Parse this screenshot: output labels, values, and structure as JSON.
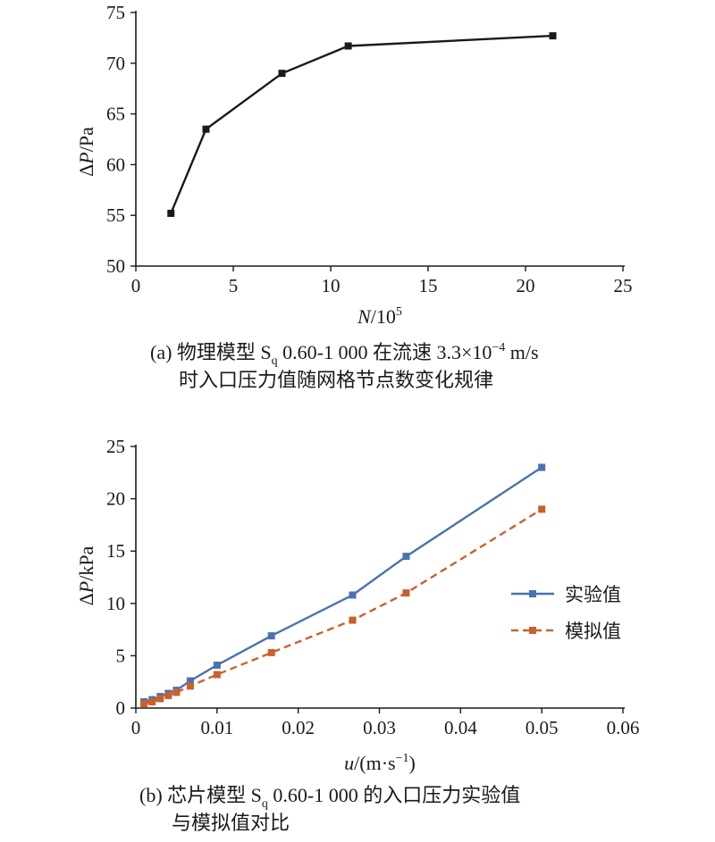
{
  "chart_data": [
    {
      "type": "line",
      "xlabel_italic": "N",
      "xlabel_rest": "/10",
      "xlabel_sup": "5",
      "ylabel_delta": "Δ",
      "ylabel_italic": "P",
      "ylabel_rest": "/Pa",
      "xlim": [
        0,
        25
      ],
      "ylim": [
        50,
        75
      ],
      "x_ticks": [
        "0",
        "5",
        "10",
        "15",
        "20",
        "25"
      ],
      "y_ticks": [
        "50",
        "55",
        "60",
        "65",
        "70",
        "75"
      ],
      "series": [
        {
          "color": "#1a1a1a",
          "x": [
            1.8,
            3.6,
            7.5,
            10.9,
            21.4
          ],
          "y": [
            55.2,
            63.5,
            69.0,
            71.7,
            72.7
          ]
        }
      ],
      "caption": {
        "line1_a": "(a) 物理模型 S",
        "line1_sub": "q",
        "line1_b": " 0.60-1 000 在流速 3.3×10",
        "line1_sup": "−4",
        "line1_c": " m/s",
        "line2": "时入口压力值随网格节点数变化规律"
      }
    },
    {
      "type": "line",
      "xlabel_italic": "u",
      "xlabel_rest": "/(m·s",
      "xlabel_sup": "−1",
      "xlabel_end": ")",
      "ylabel_delta": "Δ",
      "ylabel_italic": "P",
      "ylabel_rest": "/kPa",
      "xlim": [
        0,
        0.06
      ],
      "ylim": [
        0,
        25
      ],
      "x_ticks": [
        "0",
        "0.01",
        "0.02",
        "0.03",
        "0.04",
        "0.05",
        "0.06"
      ],
      "y_ticks": [
        "0",
        "5",
        "10",
        "15",
        "20",
        "25"
      ],
      "legend_position": "right",
      "series": [
        {
          "name": "实验值",
          "color": "#4a72b0",
          "dash": false,
          "x": [
            0.001,
            0.002,
            0.003,
            0.004,
            0.005,
            0.0067,
            0.01,
            0.0167,
            0.0267,
            0.0333,
            0.05
          ],
          "y": [
            0.6,
            0.8,
            1.1,
            1.4,
            1.7,
            2.6,
            4.1,
            6.9,
            10.8,
            14.5,
            23.0
          ]
        },
        {
          "name": "模拟值",
          "color": "#c9602e",
          "dash": true,
          "x": [
            0.001,
            0.002,
            0.003,
            0.004,
            0.005,
            0.0067,
            0.01,
            0.0167,
            0.0267,
            0.0333,
            0.05
          ],
          "y": [
            0.4,
            0.6,
            0.9,
            1.2,
            1.5,
            2.1,
            3.2,
            5.3,
            8.4,
            11.0,
            19.0
          ]
        }
      ],
      "caption": {
        "line1_a": "(b) 芯片模型 S",
        "line1_sub": "q",
        "line1_b": " 0.60-1 000 的入口压力实验值",
        "line2": "与模拟值对比"
      }
    }
  ]
}
